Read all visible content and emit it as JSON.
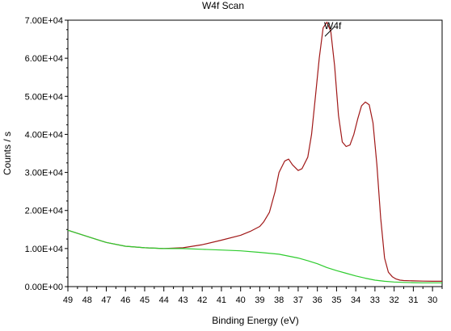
{
  "chart_data": {
    "type": "line",
    "title": "W4f Scan",
    "xlabel": "Binding Energy (eV)",
    "ylabel": "Counts / s",
    "x_reversed": true,
    "xlim": [
      49.0,
      29.5
    ],
    "ylim": [
      0,
      70000
    ],
    "x_ticks": [
      "49",
      "48",
      "47",
      "46",
      "45",
      "44",
      "43",
      "42",
      "41",
      "40",
      "39",
      "38",
      "37",
      "36",
      "35",
      "34",
      "33",
      "32",
      "31",
      "30"
    ],
    "y_ticks": [
      "0.00E+00",
      "1.00E+04",
      "2.00E+04",
      "3.00E+04",
      "4.00E+04",
      "5.00E+04",
      "6.00E+04",
      "7.00E+04"
    ],
    "grid": false,
    "annotations": [
      {
        "text": "W4f",
        "x": 34.8,
        "y": 69000
      }
    ],
    "series": [
      {
        "color": "#a01818",
        "x": [
          49,
          48,
          47,
          46,
          45,
          44,
          43,
          42,
          41,
          40,
          39.5,
          39,
          38.8,
          38.5,
          38.2,
          38,
          37.7,
          37.5,
          37.3,
          37,
          36.8,
          36.5,
          36.3,
          36.1,
          35.9,
          35.7,
          35.5,
          35.3,
          35.1,
          34.9,
          34.7,
          34.5,
          34.3,
          34.1,
          33.9,
          33.7,
          33.5,
          33.3,
          33.1,
          32.9,
          32.7,
          32.5,
          32.3,
          32.1,
          31.9,
          31.7,
          31.5,
          31,
          30.5,
          30,
          29.5
        ],
        "values": [
          14800,
          13200,
          11600,
          10600,
          10200,
          10000,
          10200,
          11000,
          12200,
          13500,
          14500,
          15800,
          17000,
          19500,
          25000,
          30000,
          33000,
          33500,
          32000,
          30500,
          31000,
          34000,
          40000,
          50000,
          60000,
          68000,
          69500,
          67000,
          58000,
          45000,
          38000,
          36800,
          37200,
          40000,
          44000,
          47500,
          48500,
          47800,
          43000,
          32000,
          18000,
          7500,
          3800,
          2600,
          2000,
          1700,
          1600,
          1500,
          1450,
          1400,
          1400
        ]
      },
      {
        "color": "#2ecc2e",
        "x": [
          49,
          48,
          47,
          46,
          45,
          44,
          43,
          42,
          41,
          40,
          39,
          38,
          37,
          36.5,
          36,
          35.5,
          35,
          34.5,
          34,
          33.5,
          33,
          32.5,
          32,
          31.5,
          31,
          30.5,
          30,
          29.5
        ],
        "values": [
          14800,
          13200,
          11600,
          10600,
          10200,
          10000,
          10000,
          9800,
          9600,
          9400,
          9000,
          8500,
          7500,
          6800,
          6000,
          5000,
          4200,
          3500,
          2800,
          2200,
          1700,
          1400,
          1200,
          1100,
          1050,
          1000,
          1000,
          1000
        ]
      }
    ]
  }
}
